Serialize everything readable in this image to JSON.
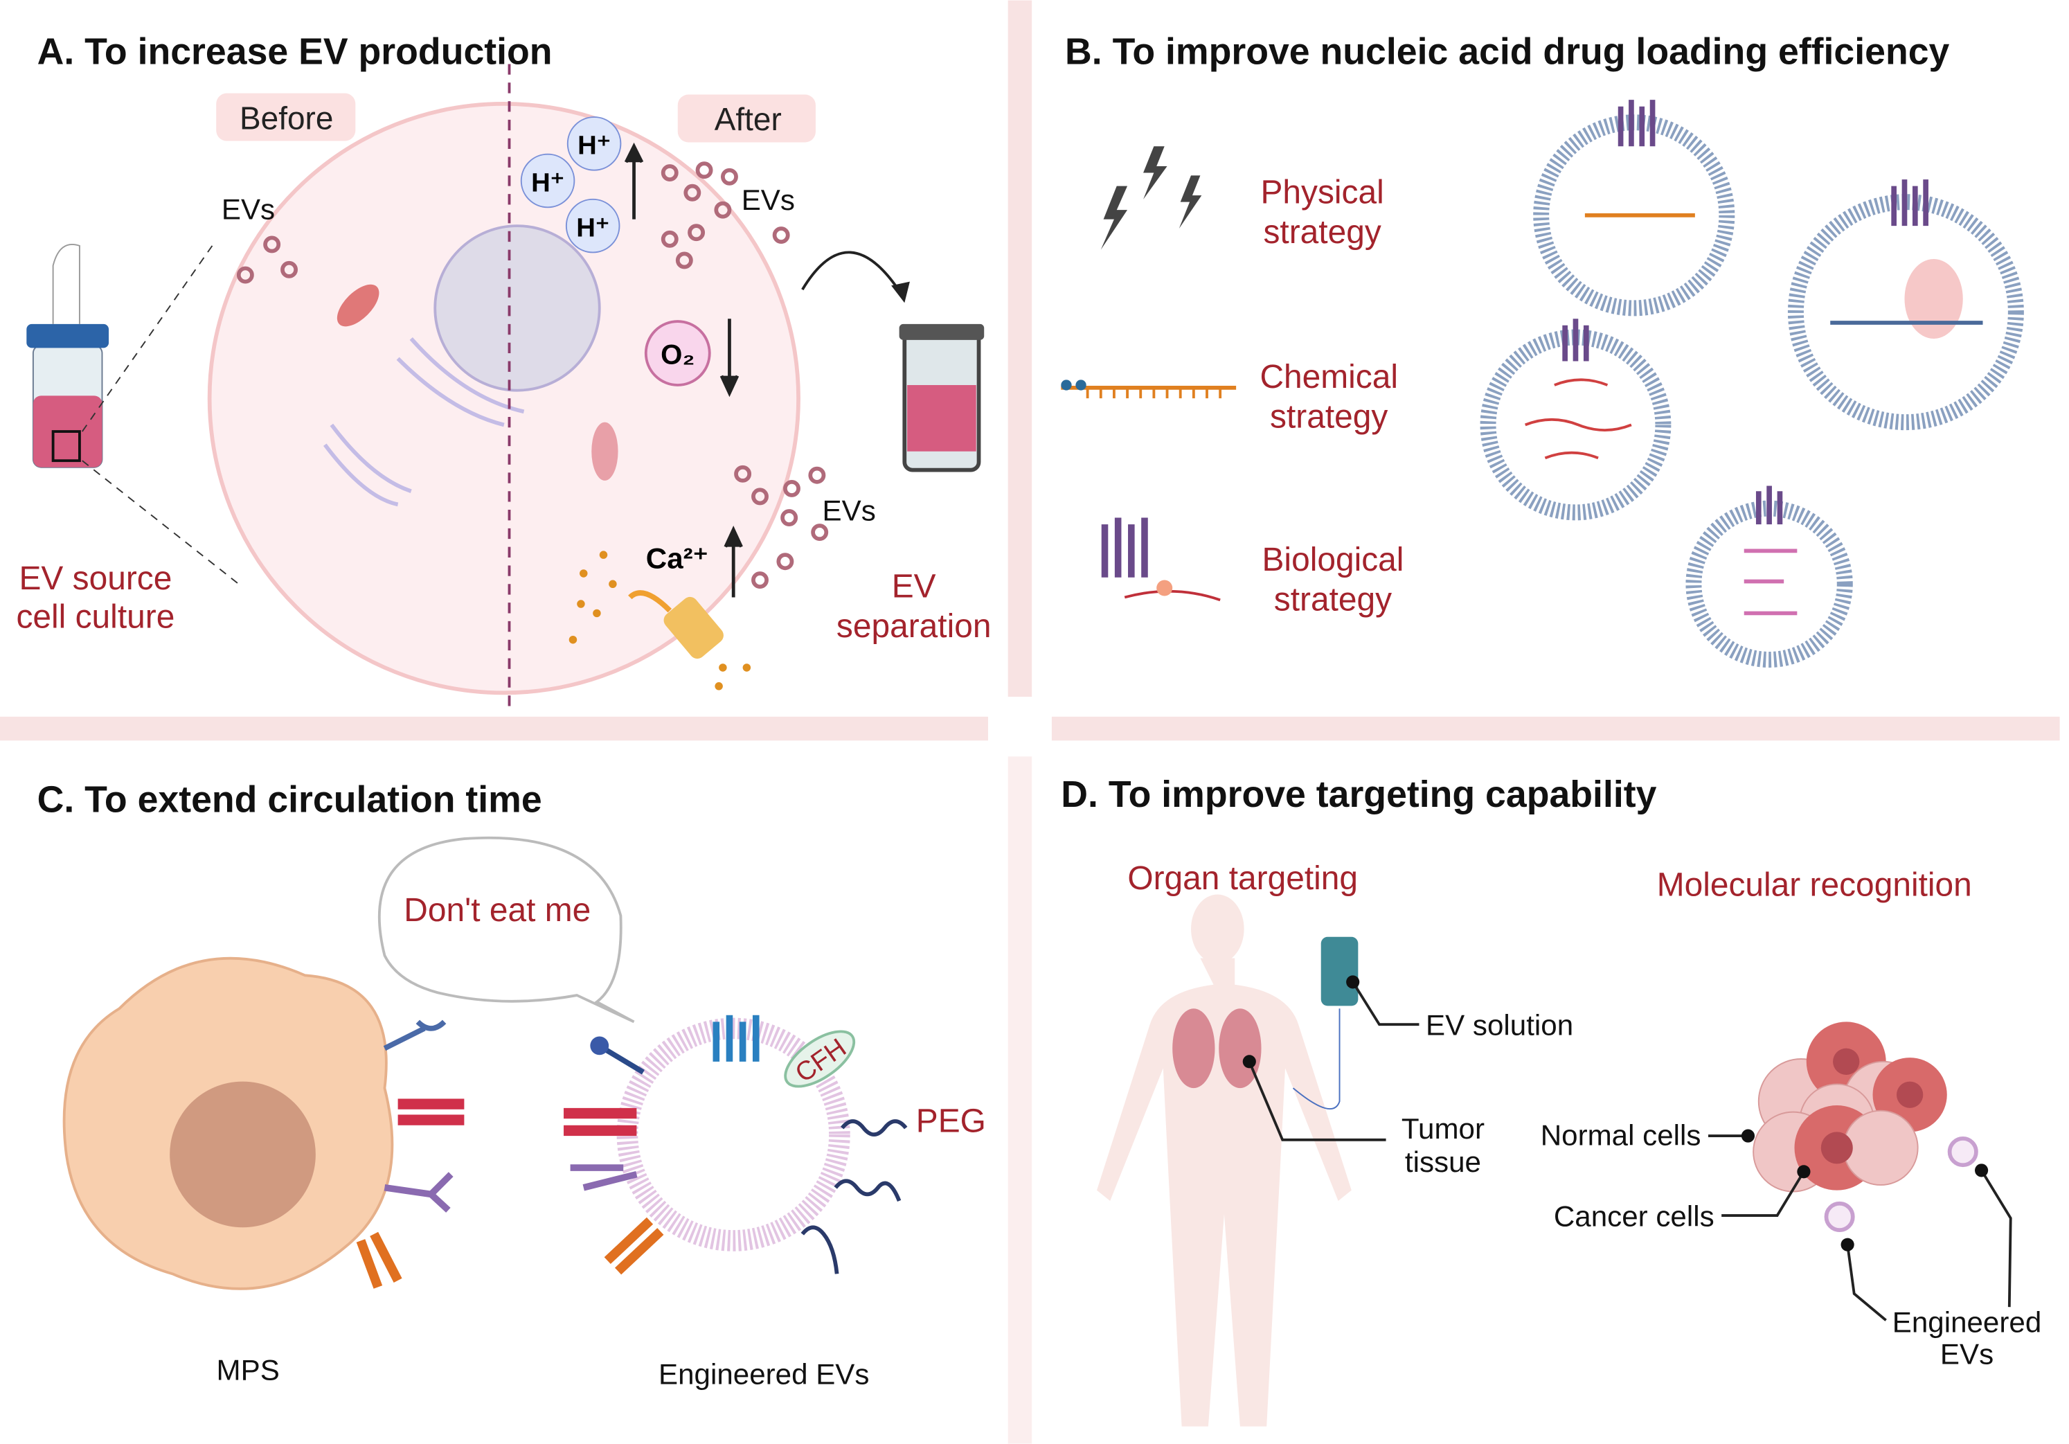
{
  "panel_a": {
    "title": "A. To increase EV production",
    "before": "Before",
    "after": "After",
    "evs": "EVs",
    "h_plus": "H⁺",
    "o2": "O₂",
    "ca": "Ca²⁺",
    "source_line1": "EV source",
    "source_line2": "cell culture",
    "sep_line1": "EV",
    "sep_line2": "separation"
  },
  "panel_b": {
    "title": "B. To improve nucleic acid drug loading efficiency",
    "physical_1": "Physical",
    "physical_2": "strategy",
    "chemical_1": "Chemical",
    "chemical_2": "strategy",
    "biological_1": "Biological",
    "biological_2": "strategy"
  },
  "panel_c": {
    "title": "C. To extend circulation time",
    "speech": "Don't eat me",
    "mps": "MPS",
    "engineered": "Engineered EVs",
    "peg": "PEG",
    "cfh": "CFH"
  },
  "panel_d": {
    "title": "D. To improve targeting capability",
    "organ": "Organ targeting",
    "molecular": "Molecular recognition",
    "ev_solution": "EV solution",
    "tumor_1": "Tumor",
    "tumor_2": "tissue",
    "normal": "Normal cells",
    "cancer": "Cancer cells",
    "eng_1": "Engineered",
    "eng_2": "EVs"
  },
  "colors": {
    "accent_red": "#a3232c",
    "band": "#f8e3e3",
    "cell": "#fdeef0",
    "vesicle": "#8aa0c0"
  }
}
